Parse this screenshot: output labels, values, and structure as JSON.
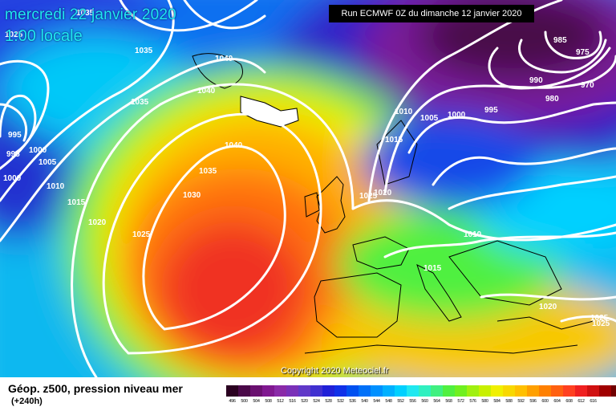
{
  "header": {
    "date": "mercredi 22 janvier 2020",
    "time": "1:00 locale",
    "run": "Run ECMWF 0Z du dimanche 12 janvier 2020"
  },
  "map": {
    "copyright": "Copyright 2020 Meteociel.fr",
    "isobar_labels": [
      {
        "text": "1035"
      },
      {
        "text": "1025"
      },
      {
        "text": "1035"
      },
      {
        "text": "1040"
      },
      {
        "text": "1040"
      },
      {
        "text": "1035"
      },
      {
        "text": "995"
      },
      {
        "text": "1000"
      },
      {
        "text": "995"
      },
      {
        "text": "1005"
      },
      {
        "text": "1000"
      },
      {
        "text": "1010"
      },
      {
        "text": "1015"
      },
      {
        "text": "1020"
      },
      {
        "text": "1025"
      },
      {
        "text": "1040"
      },
      {
        "text": "1035"
      },
      {
        "text": "1030"
      },
      {
        "text": "1025"
      },
      {
        "text": "1020"
      },
      {
        "text": "985"
      },
      {
        "text": "975"
      },
      {
        "text": "990"
      },
      {
        "text": "970"
      },
      {
        "text": "980"
      },
      {
        "text": "1010"
      },
      {
        "text": "1005"
      },
      {
        "text": "1000"
      },
      {
        "text": "995"
      },
      {
        "text": "1015"
      },
      {
        "text": "1010"
      },
      {
        "text": "1015"
      },
      {
        "text": "1020"
      },
      {
        "text": "1025"
      },
      {
        "text": "1025"
      }
    ]
  },
  "legend": {
    "title": "Géop. z500, pression niveau mer",
    "subtitle": "(+240h)",
    "colors": [
      "#2a0020",
      "#4a0848",
      "#6a1070",
      "#801890",
      "#8a2aa8",
      "#7a30b8",
      "#6038c8",
      "#4030d0",
      "#2020d8",
      "#1030e8",
      "#0050f0",
      "#0070f8",
      "#0090ff",
      "#00b0ff",
      "#00d0ff",
      "#20e8f0",
      "#30f0c0",
      "#40f080",
      "#50f040",
      "#70f020",
      "#a0f010",
      "#c8f000",
      "#f0f000",
      "#f8d800",
      "#ffc000",
      "#ffa000",
      "#ff8000",
      "#ff6010",
      "#ff4020",
      "#f02020",
      "#d01010",
      "#a00000",
      "#700000",
      "#400000",
      "#101010"
    ],
    "ticks": [
      "496",
      "500",
      "504",
      "508",
      "512",
      "516",
      "520",
      "524",
      "528",
      "532",
      "536",
      "540",
      "544",
      "548",
      "552",
      "556",
      "560",
      "564",
      "568",
      "572",
      "576",
      "580",
      "584",
      "588",
      "592",
      "596",
      "600",
      "604",
      "608",
      "612",
      "616",
      "",
      "",
      "",
      ""
    ]
  }
}
